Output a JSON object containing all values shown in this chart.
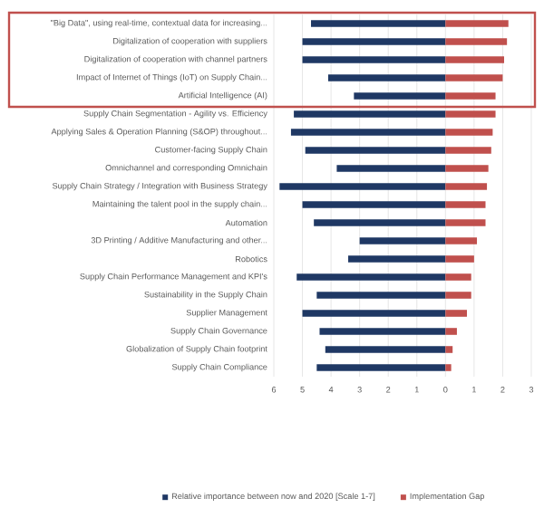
{
  "chart_data": {
    "type": "bar",
    "orientation": "horizontal",
    "categories": [
      "\"Big Data\", using real-time, contextual data for increasing...",
      "Digitalization of cooperation with suppliers",
      "Digitalization of cooperation with channel partners",
      "Impact of Internet of Things (IoT) on Supply Chain...",
      "Artificial Intelligence (AI)",
      "Supply Chain Segmentation - Agility vs. Efficiency",
      "Applying Sales & Operation Planning (S&OP) throughout...",
      "Customer-facing Supply Chain",
      "Omnichannel and corresponding Omnichain",
      "Supply Chain Strategy / Integration with Business Strategy",
      "Maintaining the talent pool in the supply chain...",
      "Automation",
      "3D Printing / Additive Manufacturing and other...",
      "Robotics",
      "Supply Chain Performance Management and KPI's",
      "Sustainability in the Supply Chain",
      "Supplier Management",
      "Supply Chain Governance",
      "Globalization of Supply Chain footprint",
      "Supply Chain Compliance"
    ],
    "series": [
      {
        "name": "Relative importance between now and 2020 [Scale 1-7]",
        "color": "#1f3864",
        "values": [
          -4.7,
          -5.0,
          -5.0,
          -4.1,
          -3.2,
          -5.3,
          -5.4,
          -4.9,
          -3.8,
          -5.8,
          -5.0,
          -4.6,
          -3.0,
          -3.4,
          -5.2,
          -4.5,
          -5.0,
          -4.4,
          -4.2,
          -4.5
        ]
      },
      {
        "name": "Implementation Gap",
        "color": "#c0504d",
        "values": [
          2.2,
          2.15,
          2.05,
          2.0,
          1.75,
          1.75,
          1.65,
          1.6,
          1.5,
          1.45,
          1.4,
          1.4,
          1.1,
          1.0,
          0.9,
          0.9,
          0.75,
          0.4,
          0.25,
          0.2
        ]
      }
    ],
    "xlim": [
      -6,
      3
    ],
    "xticks": [
      {
        "value": -6,
        "label": "6"
      },
      {
        "value": -5,
        "label": "5"
      },
      {
        "value": -4,
        "label": "4"
      },
      {
        "value": -3,
        "label": "3"
      },
      {
        "value": -2,
        "label": "2"
      },
      {
        "value": -1,
        "label": "1"
      },
      0,
      1,
      2,
      3
    ],
    "grid": "x",
    "legend": "bottom",
    "stacked": true
  }
}
